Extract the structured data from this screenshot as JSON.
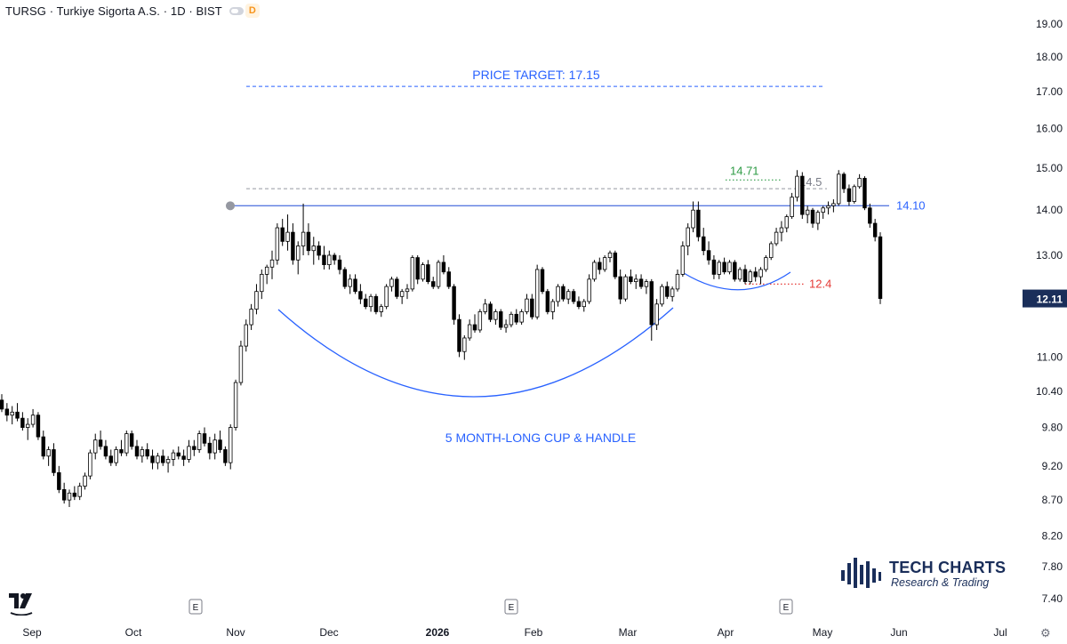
{
  "header": {
    "symbol": "TURSG · Turkiye Sigorta A.S. · 1D · BIST",
    "badge": "D"
  },
  "brand": {
    "title": "TECH CHARTS",
    "subtitle": "Research & Trading"
  },
  "colors": {
    "bull": "#ffffff",
    "bear": "#000000",
    "outline": "#000000",
    "annotation_blue": "#2962ff",
    "resistance_line": "#5b7be0",
    "stop_red": "#e53935",
    "target_green": "#2e9b45",
    "axis_text": "#131722",
    "last_price_bg": "#1a2e5a"
  },
  "chart_data": {
    "type": "candlestick",
    "timeframe": "1D",
    "x_ticks": [
      "Sep",
      "Oct",
      "Nov",
      "Dec",
      "2026",
      "Feb",
      "Mar",
      "Apr",
      "May",
      "Jun",
      "Jul"
    ],
    "y_ticks": [
      "19.00",
      "18.00",
      "17.00",
      "16.00",
      "15.00",
      "14.00",
      "13.00",
      "11.00",
      "10.40",
      "9.80",
      "9.20",
      "8.70",
      "8.20",
      "7.80",
      "7.40"
    ],
    "y_scale": "log",
    "y_range": [
      7.2,
      19.6
    ],
    "last_price": "12.11",
    "earnings_markers": [
      "E",
      "E",
      "E"
    ],
    "annotations": {
      "price_target_label": "PRICE TARGET: 17.15",
      "price_target": 17.15,
      "resistance_label": "14.10",
      "resistance": 14.1,
      "high_label": "14.71",
      "high_level": 14.71,
      "mid_label": "14.5",
      "mid_level": 14.5,
      "stop_label": "12.4",
      "stop_level": 12.4,
      "pattern_label": "5 MONTH-LONG CUP & HANDLE"
    },
    "ohlc": [
      [
        10.25,
        10.35,
        10.05,
        10.1
      ],
      [
        10.1,
        10.2,
        9.9,
        10.0
      ],
      [
        10.0,
        10.15,
        9.85,
        10.05
      ],
      [
        10.05,
        10.2,
        9.9,
        9.95
      ],
      [
        9.95,
        10.05,
        9.75,
        9.8
      ],
      [
        9.8,
        9.95,
        9.6,
        9.85
      ],
      [
        9.85,
        10.1,
        9.8,
        10.0
      ],
      [
        10.0,
        10.05,
        9.6,
        9.65
      ],
      [
        9.65,
        9.75,
        9.3,
        9.35
      ],
      [
        9.35,
        9.5,
        9.2,
        9.45
      ],
      [
        9.45,
        9.55,
        9.05,
        9.1
      ],
      [
        9.1,
        9.2,
        8.8,
        8.85
      ],
      [
        8.85,
        8.95,
        8.65,
        8.7
      ],
      [
        8.7,
        8.85,
        8.6,
        8.8
      ],
      [
        8.8,
        8.9,
        8.7,
        8.75
      ],
      [
        8.75,
        8.95,
        8.7,
        8.9
      ],
      [
        8.9,
        9.1,
        8.85,
        9.05
      ],
      [
        9.05,
        9.45,
        9.0,
        9.4
      ],
      [
        9.4,
        9.7,
        9.3,
        9.6
      ],
      [
        9.6,
        9.75,
        9.45,
        9.5
      ],
      [
        9.5,
        9.6,
        9.3,
        9.35
      ],
      [
        9.35,
        9.45,
        9.2,
        9.25
      ],
      [
        9.25,
        9.5,
        9.2,
        9.45
      ],
      [
        9.45,
        9.6,
        9.35,
        9.4
      ],
      [
        9.4,
        9.75,
        9.35,
        9.7
      ],
      [
        9.7,
        9.75,
        9.45,
        9.5
      ],
      [
        9.5,
        9.6,
        9.3,
        9.35
      ],
      [
        9.35,
        9.5,
        9.25,
        9.45
      ],
      [
        9.45,
        9.55,
        9.3,
        9.35
      ],
      [
        9.35,
        9.45,
        9.15,
        9.25
      ],
      [
        9.25,
        9.4,
        9.15,
        9.35
      ],
      [
        9.35,
        9.45,
        9.2,
        9.25
      ],
      [
        9.25,
        9.35,
        9.1,
        9.3
      ],
      [
        9.3,
        9.45,
        9.2,
        9.4
      ],
      [
        9.4,
        9.5,
        9.3,
        9.35
      ],
      [
        9.35,
        9.45,
        9.2,
        9.3
      ],
      [
        9.3,
        9.6,
        9.25,
        9.5
      ],
      [
        9.5,
        9.6,
        9.35,
        9.45
      ],
      [
        9.45,
        9.75,
        9.4,
        9.7
      ],
      [
        9.7,
        9.8,
        9.5,
        9.55
      ],
      [
        9.55,
        9.65,
        9.3,
        9.4
      ],
      [
        9.4,
        9.7,
        9.3,
        9.6
      ],
      [
        9.6,
        9.75,
        9.4,
        9.45
      ],
      [
        9.45,
        9.5,
        9.2,
        9.25
      ],
      [
        9.25,
        9.85,
        9.15,
        9.8
      ],
      [
        9.8,
        10.6,
        9.75,
        10.55
      ],
      [
        10.55,
        11.3,
        10.5,
        11.2
      ],
      [
        11.2,
        11.7,
        11.1,
        11.6
      ],
      [
        11.6,
        12.0,
        11.5,
        11.9
      ],
      [
        11.9,
        12.4,
        11.8,
        12.25
      ],
      [
        12.25,
        12.7,
        12.1,
        12.6
      ],
      [
        12.6,
        12.8,
        12.4,
        12.75
      ],
      [
        12.75,
        13.1,
        12.5,
        12.9
      ],
      [
        12.9,
        13.7,
        12.8,
        13.6
      ],
      [
        13.6,
        13.8,
        13.2,
        13.3
      ],
      [
        13.3,
        13.9,
        13.1,
        13.5
      ],
      [
        13.5,
        13.7,
        12.8,
        12.9
      ],
      [
        12.9,
        13.3,
        12.6,
        13.2
      ],
      [
        13.2,
        14.15,
        13.0,
        13.5
      ],
      [
        13.5,
        13.7,
        13.0,
        13.1
      ],
      [
        13.1,
        13.4,
        12.8,
        13.2
      ],
      [
        13.2,
        13.3,
        12.9,
        13.0
      ],
      [
        13.0,
        13.2,
        12.7,
        12.8
      ],
      [
        12.8,
        13.1,
        12.7,
        13.0
      ],
      [
        13.0,
        13.05,
        12.8,
        12.9
      ],
      [
        12.9,
        13.0,
        12.6,
        12.7
      ],
      [
        12.7,
        12.75,
        12.3,
        12.35
      ],
      [
        12.35,
        12.6,
        12.2,
        12.5
      ],
      [
        12.5,
        12.6,
        12.2,
        12.25
      ],
      [
        12.25,
        12.4,
        12.0,
        12.1
      ],
      [
        12.1,
        12.2,
        11.9,
        11.95
      ],
      [
        11.95,
        12.2,
        11.85,
        12.15
      ],
      [
        12.15,
        12.2,
        11.8,
        11.85
      ],
      [
        11.85,
        12.0,
        11.75,
        11.95
      ],
      [
        11.95,
        12.4,
        11.9,
        12.35
      ],
      [
        12.35,
        12.55,
        12.25,
        12.5
      ],
      [
        12.5,
        12.55,
        12.1,
        12.15
      ],
      [
        12.15,
        12.3,
        12.0,
        12.25
      ],
      [
        12.25,
        12.4,
        12.1,
        12.3
      ],
      [
        12.3,
        13.0,
        12.25,
        12.95
      ],
      [
        12.95,
        13.0,
        12.4,
        12.5
      ],
      [
        12.5,
        12.85,
        12.45,
        12.8
      ],
      [
        12.8,
        12.9,
        12.4,
        12.45
      ],
      [
        12.45,
        12.55,
        12.3,
        12.35
      ],
      [
        12.35,
        12.9,
        12.3,
        12.85
      ],
      [
        12.85,
        13.0,
        12.6,
        12.65
      ],
      [
        12.65,
        12.75,
        12.3,
        12.35
      ],
      [
        12.35,
        12.4,
        11.6,
        11.7
      ],
      [
        11.7,
        11.8,
        11.0,
        11.1
      ],
      [
        11.1,
        11.4,
        10.95,
        11.35
      ],
      [
        11.35,
        11.7,
        11.3,
        11.6
      ],
      [
        11.6,
        11.8,
        11.45,
        11.5
      ],
      [
        11.5,
        11.9,
        11.45,
        11.85
      ],
      [
        11.85,
        12.1,
        11.8,
        12.0
      ],
      [
        12.0,
        12.05,
        11.65,
        11.7
      ],
      [
        11.7,
        11.9,
        11.6,
        11.85
      ],
      [
        11.85,
        11.9,
        11.5,
        11.55
      ],
      [
        11.55,
        11.7,
        11.45,
        11.6
      ],
      [
        11.6,
        11.85,
        11.55,
        11.8
      ],
      [
        11.8,
        11.9,
        11.6,
        11.65
      ],
      [
        11.65,
        11.9,
        11.6,
        11.85
      ],
      [
        11.85,
        12.2,
        11.8,
        12.1
      ],
      [
        12.1,
        12.2,
        11.7,
        11.75
      ],
      [
        11.75,
        12.8,
        11.7,
        12.7
      ],
      [
        12.7,
        12.75,
        12.2,
        12.25
      ],
      [
        12.25,
        12.3,
        11.8,
        11.85
      ],
      [
        11.85,
        12.1,
        11.7,
        12.05
      ],
      [
        12.05,
        12.4,
        11.95,
        12.35
      ],
      [
        12.35,
        12.4,
        12.05,
        12.1
      ],
      [
        12.1,
        12.3,
        12.0,
        12.25
      ],
      [
        12.25,
        12.3,
        12.0,
        12.05
      ],
      [
        12.05,
        12.15,
        11.9,
        11.95
      ],
      [
        11.95,
        12.1,
        11.85,
        12.05
      ],
      [
        12.05,
        12.6,
        12.0,
        12.5
      ],
      [
        12.5,
        12.9,
        12.45,
        12.85
      ],
      [
        12.85,
        12.95,
        12.6,
        12.7
      ],
      [
        12.7,
        13.0,
        12.65,
        12.95
      ],
      [
        12.95,
        13.1,
        12.85,
        13.05
      ],
      [
        13.05,
        13.1,
        12.5,
        12.55
      ],
      [
        12.55,
        12.7,
        12.0,
        12.1
      ],
      [
        12.1,
        12.6,
        12.05,
        12.55
      ],
      [
        12.55,
        12.7,
        12.4,
        12.45
      ],
      [
        12.45,
        12.6,
        12.3,
        12.5
      ],
      [
        12.5,
        12.6,
        12.3,
        12.35
      ],
      [
        12.35,
        12.5,
        12.2,
        12.45
      ],
      [
        12.45,
        12.5,
        11.3,
        11.6
      ],
      [
        11.6,
        12.1,
        11.5,
        12.0
      ],
      [
        12.0,
        12.4,
        11.95,
        12.35
      ],
      [
        12.35,
        12.45,
        12.1,
        12.15
      ],
      [
        12.15,
        12.35,
        12.05,
        12.3
      ],
      [
        12.3,
        12.7,
        12.25,
        12.6
      ],
      [
        12.6,
        13.3,
        12.55,
        13.2
      ],
      [
        13.2,
        13.7,
        13.0,
        13.6
      ],
      [
        13.6,
        14.2,
        13.5,
        14.0
      ],
      [
        14.0,
        14.2,
        13.3,
        13.4
      ],
      [
        13.4,
        13.6,
        13.0,
        13.1
      ],
      [
        13.1,
        13.3,
        12.8,
        12.9
      ],
      [
        12.9,
        13.0,
        12.5,
        12.6
      ],
      [
        12.6,
        12.9,
        12.5,
        12.85
      ],
      [
        12.85,
        12.95,
        12.6,
        12.65
      ],
      [
        12.65,
        12.9,
        12.6,
        12.85
      ],
      [
        12.85,
        12.9,
        12.45,
        12.5
      ],
      [
        12.5,
        12.75,
        12.45,
        12.7
      ],
      [
        12.7,
        12.8,
        12.4,
        12.45
      ],
      [
        12.45,
        12.7,
        12.4,
        12.65
      ],
      [
        12.65,
        12.75,
        12.45,
        12.55
      ],
      [
        12.55,
        12.75,
        12.4,
        12.7
      ],
      [
        12.7,
        13.0,
        12.65,
        12.95
      ],
      [
        12.95,
        13.3,
        12.9,
        13.25
      ],
      [
        13.25,
        13.6,
        13.2,
        13.5
      ],
      [
        13.5,
        13.75,
        13.3,
        13.6
      ],
      [
        13.6,
        13.9,
        13.5,
        13.85
      ],
      [
        13.85,
        14.4,
        13.8,
        14.3
      ],
      [
        14.3,
        14.95,
        14.2,
        14.8
      ],
      [
        14.8,
        14.9,
        13.8,
        13.9
      ],
      [
        13.9,
        14.1,
        13.7,
        14.0
      ],
      [
        14.0,
        14.05,
        13.6,
        13.7
      ],
      [
        13.7,
        14.0,
        13.55,
        13.95
      ],
      [
        13.95,
        14.1,
        13.8,
        14.05
      ],
      [
        14.05,
        14.2,
        13.9,
        14.1
      ],
      [
        14.1,
        14.25,
        13.95,
        14.15
      ],
      [
        14.15,
        14.95,
        14.1,
        14.85
      ],
      [
        14.85,
        14.9,
        14.4,
        14.5
      ],
      [
        14.5,
        14.6,
        14.1,
        14.2
      ],
      [
        14.2,
        14.6,
        14.15,
        14.55
      ],
      [
        14.55,
        14.85,
        14.5,
        14.75
      ],
      [
        14.75,
        14.8,
        14.0,
        14.05
      ],
      [
        14.05,
        14.15,
        13.6,
        13.7
      ],
      [
        13.7,
        13.8,
        13.3,
        13.4
      ],
      [
        13.4,
        13.5,
        12.0,
        12.11
      ]
    ]
  }
}
